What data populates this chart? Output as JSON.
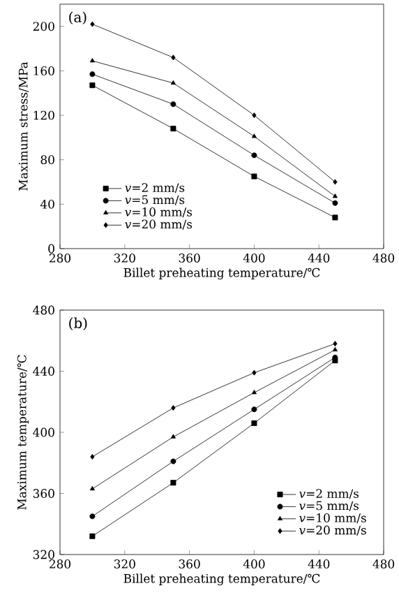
{
  "chart_data": [
    {
      "type": "line",
      "title": "(a)",
      "xlabel": "Billet preheating temperature/℃",
      "ylabel": "Maximum stress/MPa",
      "x": [
        300,
        350,
        400,
        450
      ],
      "xlim": [
        280,
        480
      ],
      "xticks": [
        280,
        320,
        360,
        400,
        440,
        480
      ],
      "ylim": [
        0,
        220
      ],
      "yticks": [
        0,
        40,
        80,
        120,
        160,
        200
      ],
      "legend": "bottom left",
      "grid": false,
      "line_style": "solid",
      "series": [
        {
          "name": "*v*=2 mm/s",
          "color": "#000000",
          "marker": "square",
          "values": [
            147,
            108,
            65,
            28
          ]
        },
        {
          "name": "*v*=5 mm/s",
          "color": "#000000",
          "marker": "circle",
          "values": [
            157,
            130,
            84,
            41
          ]
        },
        {
          "name": "*v*=10 mm/s",
          "color": "#000000",
          "marker": "triangle",
          "values": [
            169,
            149,
            101,
            47
          ]
        },
        {
          "name": "*v*=20 mm/s",
          "color": "#000000",
          "marker": "diamond",
          "values": [
            202,
            172,
            120,
            60
          ]
        }
      ]
    },
    {
      "type": "line",
      "title": "(b)",
      "xlabel": "Billet preheating temperature/℃",
      "ylabel": "Maximum temperature/℃",
      "x": [
        300,
        350,
        400,
        450
      ],
      "xlim": [
        280,
        480
      ],
      "xticks": [
        280,
        320,
        360,
        400,
        440,
        480
      ],
      "ylim": [
        320,
        480
      ],
      "yticks": [
        320,
        360,
        400,
        440,
        480
      ],
      "legend": "bottom right",
      "grid": false,
      "line_style": "solid",
      "series": [
        {
          "name": "*v*=2 mm/s",
          "color": "#000000",
          "marker": "square",
          "values": [
            332,
            367,
            406,
            447
          ]
        },
        {
          "name": "*v*=5 mm/s",
          "color": "#000000",
          "marker": "circle",
          "values": [
            345,
            381,
            415,
            449
          ]
        },
        {
          "name": "*v*=10 mm/s",
          "color": "#000000",
          "marker": "triangle",
          "values": [
            363,
            397,
            426,
            454
          ]
        },
        {
          "name": "*v*=20 mm/s",
          "color": "#000000",
          "marker": "diamond",
          "values": [
            384,
            416,
            439,
            458
          ]
        }
      ]
    }
  ]
}
